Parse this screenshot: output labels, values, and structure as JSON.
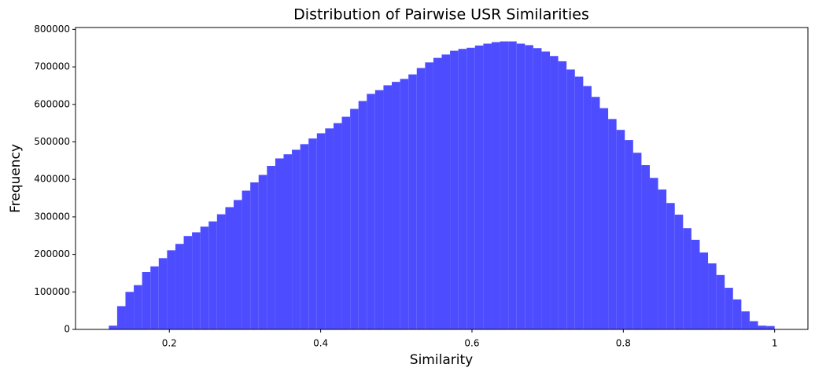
{
  "chart_data": {
    "type": "histogram",
    "title": "Distribution of Pairwise USR Similarities",
    "x_label": "Similarity",
    "y_label": "Frequency",
    "color": "#4d4dff",
    "bins": [
      0.12,
      0.131,
      0.142,
      0.153,
      0.164,
      0.175,
      0.186,
      0.197,
      0.208,
      0.219,
      0.23,
      0.241,
      0.252,
      0.263,
      0.274,
      0.285,
      0.296,
      0.307,
      0.318,
      0.329,
      0.34,
      0.351,
      0.362,
      0.373,
      0.384,
      0.395,
      0.406,
      0.417,
      0.428,
      0.439,
      0.45,
      0.461,
      0.472,
      0.483,
      0.494,
      0.505,
      0.516,
      0.527,
      0.538,
      0.549,
      0.56,
      0.571,
      0.582,
      0.593,
      0.604,
      0.615,
      0.626,
      0.637,
      0.648,
      0.659,
      0.67,
      0.681,
      0.692,
      0.703,
      0.714,
      0.725,
      0.736,
      0.747,
      0.758,
      0.769,
      0.78,
      0.791,
      0.802,
      0.813,
      0.824,
      0.835,
      0.846,
      0.857,
      0.868,
      0.879,
      0.89,
      0.901,
      0.912,
      0.923,
      0.934,
      0.945,
      0.956,
      0.967,
      0.978,
      0.989,
      1.0
    ],
    "values": [
      10000,
      62000,
      100000,
      118000,
      153000,
      168000,
      190000,
      211000,
      228000,
      249000,
      259000,
      274000,
      288000,
      307000,
      326000,
      345000,
      370000,
      392000,
      412000,
      436000,
      456000,
      467000,
      479000,
      494000,
      509000,
      523000,
      536000,
      550000,
      567000,
      588000,
      609000,
      628000,
      638000,
      651000,
      660000,
      668000,
      680000,
      697000,
      712000,
      724000,
      733000,
      743000,
      748000,
      751000,
      757000,
      762000,
      766000,
      768000,
      768000,
      762000,
      758000,
      750000,
      741000,
      729000,
      715000,
      693000,
      674000,
      649000,
      620000,
      590000,
      561000,
      532000,
      505000,
      471000,
      438000,
      404000,
      373000,
      337000,
      306000,
      270000,
      239000,
      205000,
      176000,
      145000,
      111000,
      80000,
      48000,
      22000,
      10000,
      9000
    ],
    "xlim": [
      0.076,
      1.044
    ],
    "ylim": [
      0,
      805000
    ],
    "xticks": [
      0.2,
      0.4,
      0.6,
      0.8,
      1.0
    ],
    "yticks": [
      0,
      100000,
      200000,
      300000,
      400000,
      500000,
      600000,
      700000,
      800000
    ]
  }
}
